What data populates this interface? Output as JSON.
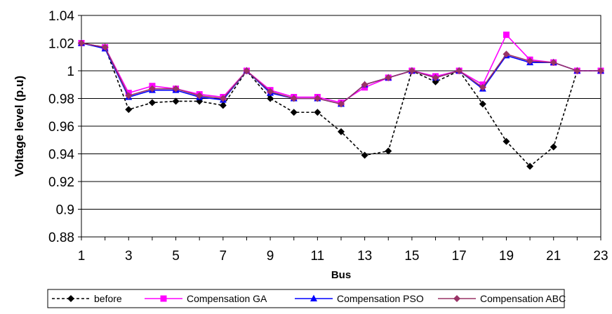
{
  "chart_data": {
    "type": "line",
    "title": "",
    "xlabel": "Bus",
    "ylabel": "Voltage level (p.u)",
    "x": [
      1,
      2,
      3,
      4,
      5,
      6,
      7,
      8,
      9,
      10,
      11,
      12,
      13,
      14,
      15,
      16,
      17,
      18,
      19,
      20,
      21,
      22,
      23
    ],
    "xtick_labels": [
      "1",
      "3",
      "5",
      "7",
      "9",
      "11",
      "13",
      "15",
      "17",
      "19",
      "21",
      "23"
    ],
    "ytick_labels": [
      "0.88",
      "0.9",
      "0.92",
      "0.94",
      "0.96",
      "0.98",
      "1",
      "1.02",
      "1.04"
    ],
    "ylim": [
      0.88,
      1.04
    ],
    "grid": "horizontal",
    "legend_position": "bottom",
    "series": [
      {
        "name": "before",
        "color": "#000000",
        "marker": "diamond",
        "dash": true,
        "values": [
          1.02,
          1.017,
          0.972,
          0.977,
          0.978,
          0.978,
          0.975,
          1.0,
          0.98,
          0.97,
          0.97,
          0.956,
          0.939,
          0.942,
          1.0,
          0.992,
          1.0,
          0.976,
          0.949,
          0.931,
          0.945,
          1.0,
          1.0
        ]
      },
      {
        "name": "Compensation GA",
        "color": "#ff00ff",
        "marker": "square",
        "dash": false,
        "values": [
          1.02,
          1.017,
          0.984,
          0.989,
          0.987,
          0.983,
          0.981,
          1.0,
          0.986,
          0.981,
          0.981,
          0.977,
          0.988,
          0.995,
          1.0,
          0.996,
          1.0,
          0.99,
          1.026,
          1.008,
          1.006,
          1.0,
          1.0
        ]
      },
      {
        "name": "Compensation PSO",
        "color": "#0000ff",
        "marker": "triangle",
        "dash": false,
        "values": [
          1.02,
          1.016,
          0.981,
          0.986,
          0.986,
          0.981,
          0.979,
          1.0,
          0.984,
          0.98,
          0.98,
          0.976,
          0.99,
          0.995,
          1.0,
          0.995,
          1.0,
          0.987,
          1.011,
          1.006,
          1.006,
          1.0,
          1.0
        ]
      },
      {
        "name": "Compensation ABC",
        "color": "#993366",
        "marker": "diamond",
        "dash": false,
        "values": [
          1.02,
          1.017,
          0.982,
          0.987,
          0.987,
          0.982,
          0.98,
          1.0,
          0.985,
          0.98,
          0.98,
          0.976,
          0.99,
          0.995,
          1.0,
          0.995,
          1.0,
          0.988,
          1.012,
          1.007,
          1.006,
          1.0,
          1.0
        ]
      }
    ]
  }
}
